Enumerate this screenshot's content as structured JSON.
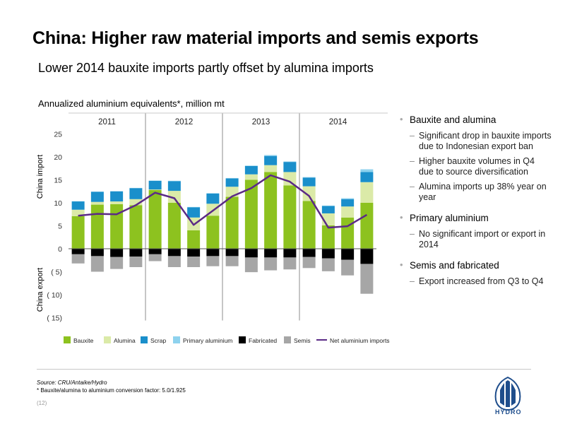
{
  "title": "China: Higher raw material imports and semis exports",
  "subtitle": "Lower 2014 bauxite imports partly offset by alumina imports",
  "chart_caption": "Annualized aluminium equivalents*, million mt",
  "bullets": [
    {
      "label": "Bauxite and alumina",
      "subs": [
        "Significant drop in bauxite imports due to Indonesian export ban",
        "Higher bauxite volumes in Q4 due to source diversification",
        "Alumina imports up 38% year on year"
      ]
    },
    {
      "label": "Primary aluminium",
      "subs": [
        "No significant import or export in 2014"
      ]
    },
    {
      "label": "Semis and fabricated",
      "subs": [
        "Export increased from Q3 to Q4"
      ]
    }
  ],
  "footer": {
    "source": "Source: CRU/Antaike/Hydro",
    "footnote": "* Bauxite/alumina to aluminium conversion factor: 5.0/1.925",
    "page": "(12)",
    "brand": "HYDRO"
  },
  "chart_data": {
    "type": "bar",
    "stacked": true,
    "years": [
      "2011",
      "2012",
      "2013",
      "2014"
    ],
    "quarters_per_year": 4,
    "ylabel_import": "China import",
    "ylabel_export": "China export",
    "ylim": [
      -15,
      25
    ],
    "yticks": [
      25,
      20,
      15,
      10,
      5,
      0,
      -5,
      -10,
      -15
    ],
    "ytick_labels": [
      "25",
      "20",
      "15",
      "10",
      "5",
      "0",
      "( 5)",
      "( 10)",
      "( 15)"
    ],
    "series": [
      {
        "name": "Bauxite",
        "color": "#8dc21f",
        "values": [
          7.1,
          9.6,
          9.7,
          9.5,
          12.8,
          10.0,
          4.0,
          7.2,
          11.3,
          15.0,
          16.7,
          13.8,
          10.4,
          5.1,
          6.8,
          10.0
        ]
      },
      {
        "name": "Alumina",
        "color": "#dbeaa8",
        "values": [
          1.4,
          0.6,
          0.6,
          1.3,
          0.1,
          2.6,
          2.8,
          2.6,
          2.2,
          1.2,
          1.5,
          2.9,
          3.2,
          2.6,
          2.4,
          4.5
        ]
      },
      {
        "name": "Scrap",
        "color": "#1a8fcb",
        "values": [
          1.8,
          2.2,
          2.2,
          2.4,
          1.9,
          2.1,
          2.2,
          2.2,
          1.8,
          1.8,
          2.0,
          2.2,
          1.9,
          1.6,
          1.6,
          2.2
        ]
      },
      {
        "name": "Primary aluminium",
        "color": "#8ed2ee",
        "values": [
          0.05,
          0.05,
          0.05,
          0.05,
          0.05,
          0.1,
          0.1,
          0.1,
          0.1,
          0.1,
          0.2,
          0.1,
          0.1,
          0.1,
          0.2,
          0.6
        ]
      },
      {
        "name": "Fabricated",
        "color": "#000000",
        "values": [
          -1.2,
          -1.6,
          -1.8,
          -1.7,
          -1.2,
          -1.6,
          -1.7,
          -1.6,
          -1.6,
          -1.9,
          -1.9,
          -1.9,
          -1.8,
          -2.1,
          -2.4,
          -3.3
        ]
      },
      {
        "name": "Semis",
        "color": "#a6a6a6",
        "values": [
          -2.0,
          -3.4,
          -2.6,
          -2.3,
          -1.5,
          -2.4,
          -2.3,
          -2.2,
          -2.2,
          -3.2,
          -2.8,
          -2.6,
          -2.4,
          -2.8,
          -3.4,
          -6.5
        ]
      }
    ],
    "line": {
      "name": "Net aluminium imports",
      "color": "#5b2a86",
      "values": [
        7.2,
        7.6,
        7.5,
        9.5,
        12.2,
        11.0,
        5.2,
        8.3,
        11.4,
        13.2,
        16.0,
        14.6,
        11.5,
        4.6,
        4.9,
        7.4
      ]
    },
    "legend_position": "bottom"
  }
}
